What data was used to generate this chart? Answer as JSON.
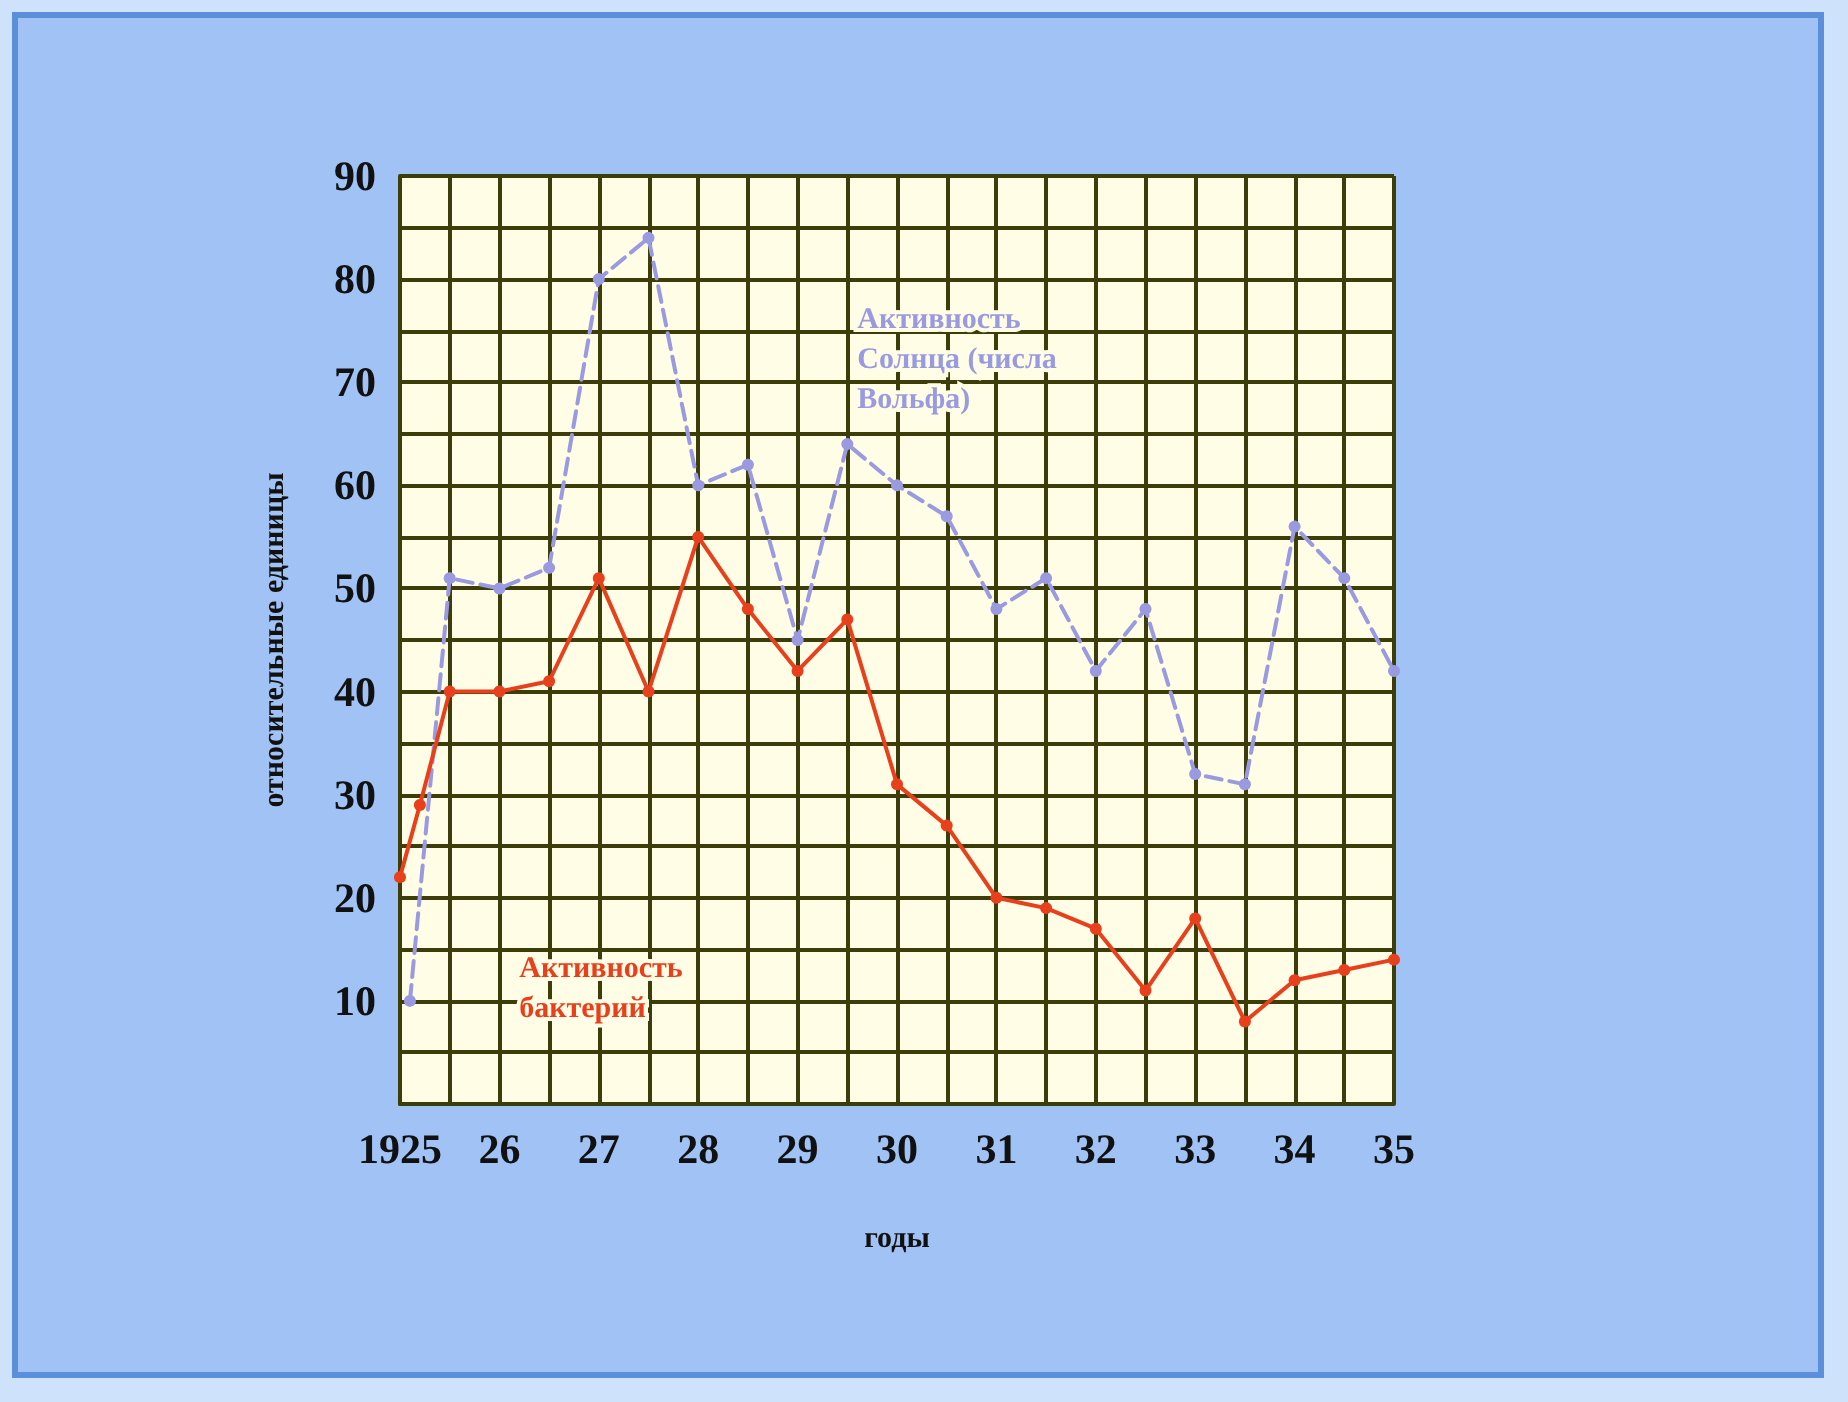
{
  "chart_data": {
    "type": "line",
    "xlabel": "годы",
    "ylabel": "относительные единицы",
    "xlim": [
      1925,
      1935
    ],
    "ylim": [
      0,
      90
    ],
    "xticks": [
      {
        "value": 1925,
        "label": "1925"
      },
      {
        "value": 1925.5,
        "label": null
      },
      {
        "value": 1926,
        "label": "26"
      },
      {
        "value": 1926.5,
        "label": null
      },
      {
        "value": 1927,
        "label": "27"
      },
      {
        "value": 1927.5,
        "label": null
      },
      {
        "value": 1928,
        "label": "28"
      },
      {
        "value": 1928.5,
        "label": null
      },
      {
        "value": 1929,
        "label": "29"
      },
      {
        "value": 1929.5,
        "label": null
      },
      {
        "value": 1930,
        "label": "30"
      },
      {
        "value": 1930.5,
        "label": null
      },
      {
        "value": 1931,
        "label": "31"
      },
      {
        "value": 1931.5,
        "label": null
      },
      {
        "value": 1932,
        "label": "32"
      },
      {
        "value": 1932.5,
        "label": null
      },
      {
        "value": 1933,
        "label": "33"
      },
      {
        "value": 1933.5,
        "label": null
      },
      {
        "value": 1934,
        "label": "34"
      },
      {
        "value": 1934.5,
        "label": null
      },
      {
        "value": 1935,
        "label": "35"
      }
    ],
    "yticks": [
      {
        "value": 0,
        "label": null
      },
      {
        "value": 5,
        "label": null
      },
      10,
      {
        "value": 15,
        "label": null
      },
      20,
      {
        "value": 25,
        "label": null
      },
      30,
      {
        "value": 35,
        "label": null
      },
      40,
      {
        "value": 45,
        "label": null
      },
      50,
      {
        "value": 55,
        "label": null
      },
      60,
      {
        "value": 65,
        "label": null
      },
      70,
      {
        "value": 75,
        "label": null
      },
      80,
      {
        "value": 85,
        "label": null
      },
      90
    ],
    "grid": true,
    "legend": false,
    "marker": "circle",
    "series": [
      {
        "name": "Активность Солнца (числа Вольфа)",
        "color": "#9a9ae0",
        "line_style": "dashed",
        "x": [
          1925.1,
          1925.5,
          1926,
          1926.5,
          1927,
          1927.5,
          1928,
          1928.5,
          1929,
          1929.5,
          1930,
          1930.5,
          1931,
          1931.5,
          1932,
          1932.5,
          1933,
          1933.5,
          1934,
          1934.5,
          1935
        ],
        "values": [
          10,
          51,
          50,
          52,
          80,
          84,
          60,
          62,
          45,
          64,
          60,
          57,
          48,
          51,
          42,
          48,
          32,
          31,
          56,
          51,
          42
        ]
      },
      {
        "name": "Активность бактерий",
        "color": "#e8401c",
        "line_style": "solid",
        "x": [
          1925,
          1925.2,
          1925.5,
          1926,
          1926.5,
          1927,
          1927.5,
          1928,
          1928.5,
          1929,
          1929.5,
          1930,
          1930.5,
          1931,
          1931.5,
          1932,
          1932.5,
          1933,
          1933.5,
          1934,
          1934.5,
          1935
        ],
        "values": [
          22,
          29,
          40,
          40,
          41,
          51,
          40,
          55,
          48,
          42,
          47,
          31,
          27,
          20,
          19,
          17,
          11,
          18,
          8,
          12,
          13,
          14
        ]
      }
    ]
  }
}
